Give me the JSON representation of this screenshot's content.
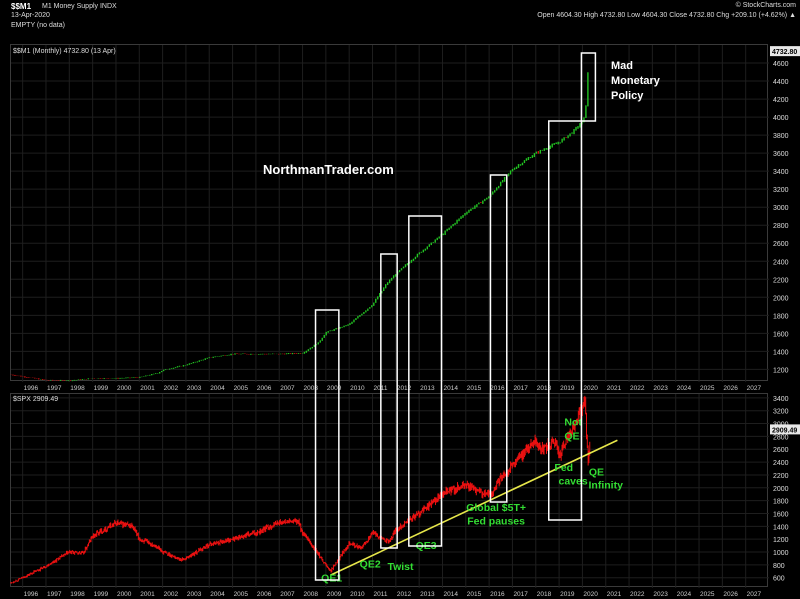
{
  "header": {
    "symbol": "$$M1",
    "name": "M1 Money Supply  INDX",
    "date": "13-Apr-2020",
    "ohlc": "Open 4604.30   High 4732.80   Low 4604.30   Close 4732.80   Chg +209.10 (+4.62%) ▲",
    "brand": "© StockCharts.com",
    "empty_label": "EMPTY (no data)"
  },
  "colors": {
    "background": "#000000",
    "m1_up": "#22c422",
    "m1_down": "#d01010",
    "spx_line": "#ee1111",
    "trendline": "#e6e64a",
    "box": "#ffffff",
    "green_annotation": "#33dd33"
  },
  "chart_data": [
    {
      "type": "line",
      "legend": "$$M1 (Monthly) 4732.80 (13 Apr)",
      "last_value_label": "4732.80",
      "y_ticks": [
        1200,
        1400,
        1600,
        1800,
        2000,
        2200,
        2400,
        2600,
        2800,
        3000,
        3200,
        3400,
        3600,
        3800,
        4000,
        4200,
        4400,
        4600
      ],
      "ylim": [
        1060,
        4800
      ],
      "x_ticks": [
        "1996",
        "1997",
        "1998",
        "1999",
        "2000",
        "2001",
        "2002",
        "2003",
        "2004",
        "2005",
        "2006",
        "2007",
        "2008",
        "2009",
        "2010",
        "2011",
        "2012",
        "2013",
        "2014",
        "2015",
        "2016",
        "2017",
        "2018",
        "2019",
        "2020",
        "2021",
        "2022",
        "2023",
        "2024",
        "2025",
        "2026",
        "2027"
      ],
      "xlim": [
        1995.5,
        2028.0
      ],
      "x": [
        1995.5,
        1996,
        1997,
        1998,
        1999,
        2000,
        2001,
        2001.8,
        2002,
        2003,
        2004,
        2005,
        2006,
        2007,
        2008,
        2008.7,
        2009,
        2010,
        2011,
        2011.6,
        2012,
        2013,
        2014,
        2015,
        2016,
        2017,
        2018,
        2019,
        2019.6,
        2020,
        2020.1,
        2020.2,
        2020.28
      ],
      "values": [
        1140,
        1120,
        1080,
        1075,
        1100,
        1100,
        1110,
        1160,
        1190,
        1250,
        1330,
        1370,
        1370,
        1370,
        1380,
        1500,
        1610,
        1700,
        1920,
        2150,
        2260,
        2490,
        2700,
        2940,
        3120,
        3420,
        3600,
        3720,
        3840,
        3950,
        4000,
        4280,
        4732
      ],
      "annotations": [
        "Mad",
        "Monetary",
        "Policy"
      ],
      "watermark": "NorthmanTrader.com"
    },
    {
      "type": "line",
      "legend": "$SPX 2909.49",
      "last_value_label": "2909.49",
      "y_ticks": [
        600,
        800,
        1000,
        1200,
        1400,
        1600,
        1800,
        2000,
        2200,
        2400,
        2600,
        2800,
        3000,
        3200,
        3400
      ],
      "ylim": [
        440,
        3460
      ],
      "x_ticks": [
        "1996",
        "1997",
        "1998",
        "1999",
        "2000",
        "2001",
        "2002",
        "2003",
        "2004",
        "2005",
        "2006",
        "2007",
        "2008",
        "2009",
        "2010",
        "2011",
        "2012",
        "2013",
        "2014",
        "2015",
        "2016",
        "2017",
        "2018",
        "2019",
        "2020",
        "2021",
        "2022",
        "2023",
        "2024",
        "2025",
        "2026",
        "2027"
      ],
      "xlim": [
        1995.5,
        2028.0
      ],
      "x": [
        1995.5,
        1996,
        1997,
        1998,
        1998.6,
        1999,
        2000,
        2000.7,
        2001,
        2001.7,
        2002,
        2002.8,
        2003,
        2004,
        2005,
        2006,
        2007,
        2007.8,
        2008,
        2008.8,
        2009.2,
        2010,
        2010.5,
        2011,
        2011.7,
        2012,
        2013,
        2014,
        2015,
        2015.7,
        2016.1,
        2016.5,
        2017,
        2018,
        2018.2,
        2018.9,
        2019,
        2019.6,
        2020.1,
        2020.25,
        2020.35
      ],
      "values": [
        520,
        600,
        780,
        1000,
        980,
        1250,
        1450,
        1400,
        1200,
        1100,
        1000,
        880,
        900,
        1120,
        1200,
        1300,
        1460,
        1480,
        1300,
        900,
        700,
        1150,
        1050,
        1300,
        1150,
        1350,
        1600,
        1900,
        2050,
        1900,
        1900,
        2150,
        2350,
        2750,
        2600,
        2700,
        2500,
        2950,
        3350,
        2350,
        2909
      ],
      "trendline": {
        "x": [
          2009.2,
          2021.5
        ],
        "values": [
          640,
          2740
        ]
      },
      "annotations": [
        {
          "text": "QE1",
          "x": 2009.25,
          "y": 540,
          "color": "#33dd33"
        },
        {
          "text": "QE2",
          "x": 2010.9,
          "y": 760,
          "color": "#33dd33"
        },
        {
          "text": "Twist",
          "x": 2012.2,
          "y": 720,
          "color": "#33dd33"
        },
        {
          "text": "QE3",
          "x": 2013.3,
          "y": 1050,
          "color": "#33dd33"
        },
        {
          "text": "Global $5T+",
          "x": 2016.3,
          "y": 1640,
          "color": "#33dd33"
        },
        {
          "text": "Fed pauses",
          "x": 2016.3,
          "y": 1430,
          "color": "#33dd33"
        },
        {
          "text": "Fed",
          "x": 2019.2,
          "y": 2260,
          "color": "#33dd33"
        },
        {
          "text": "caves",
          "x": 2019.6,
          "y": 2050,
          "color": "#33dd33"
        },
        {
          "text": "Not",
          "x": 2019.6,
          "y": 2970,
          "color": "#33dd33"
        },
        {
          "text": "QE",
          "x": 2019.55,
          "y": 2750,
          "color": "#33dd33"
        },
        {
          "text": "QE",
          "x": 2020.6,
          "y": 2190,
          "color": "#33dd33"
        },
        {
          "text": "Infinity",
          "x": 2021.0,
          "y": 1990,
          "color": "#33dd33"
        }
      ]
    }
  ],
  "boxes": [
    {
      "x0": 2008.6,
      "x1": 2009.6
    },
    {
      "x0": 2011.4,
      "x1": 2012.1
    },
    {
      "x0": 2012.6,
      "x1": 2014.0
    },
    {
      "x0": 2016.1,
      "x1": 2016.8
    },
    {
      "x0": 2018.6,
      "x1": 2020.0
    },
    {
      "x0": 2020.0,
      "x1": 2020.6
    }
  ]
}
